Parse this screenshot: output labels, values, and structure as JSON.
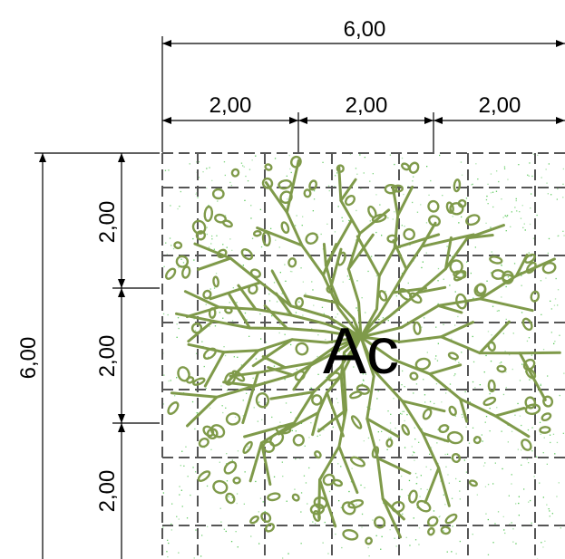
{
  "dimensions": {
    "top_total": "6,00",
    "top_segments": [
      "2,00",
      "2,00",
      "2,00"
    ],
    "left_total": "6,00",
    "left_segments": [
      "2,00",
      "2,00",
      "2,00"
    ]
  },
  "tree_label": "Ac",
  "colors": {
    "tree": "#7f9a4a",
    "grid": "#555555",
    "speckle": "#33bb33",
    "dimension": "#000000"
  }
}
